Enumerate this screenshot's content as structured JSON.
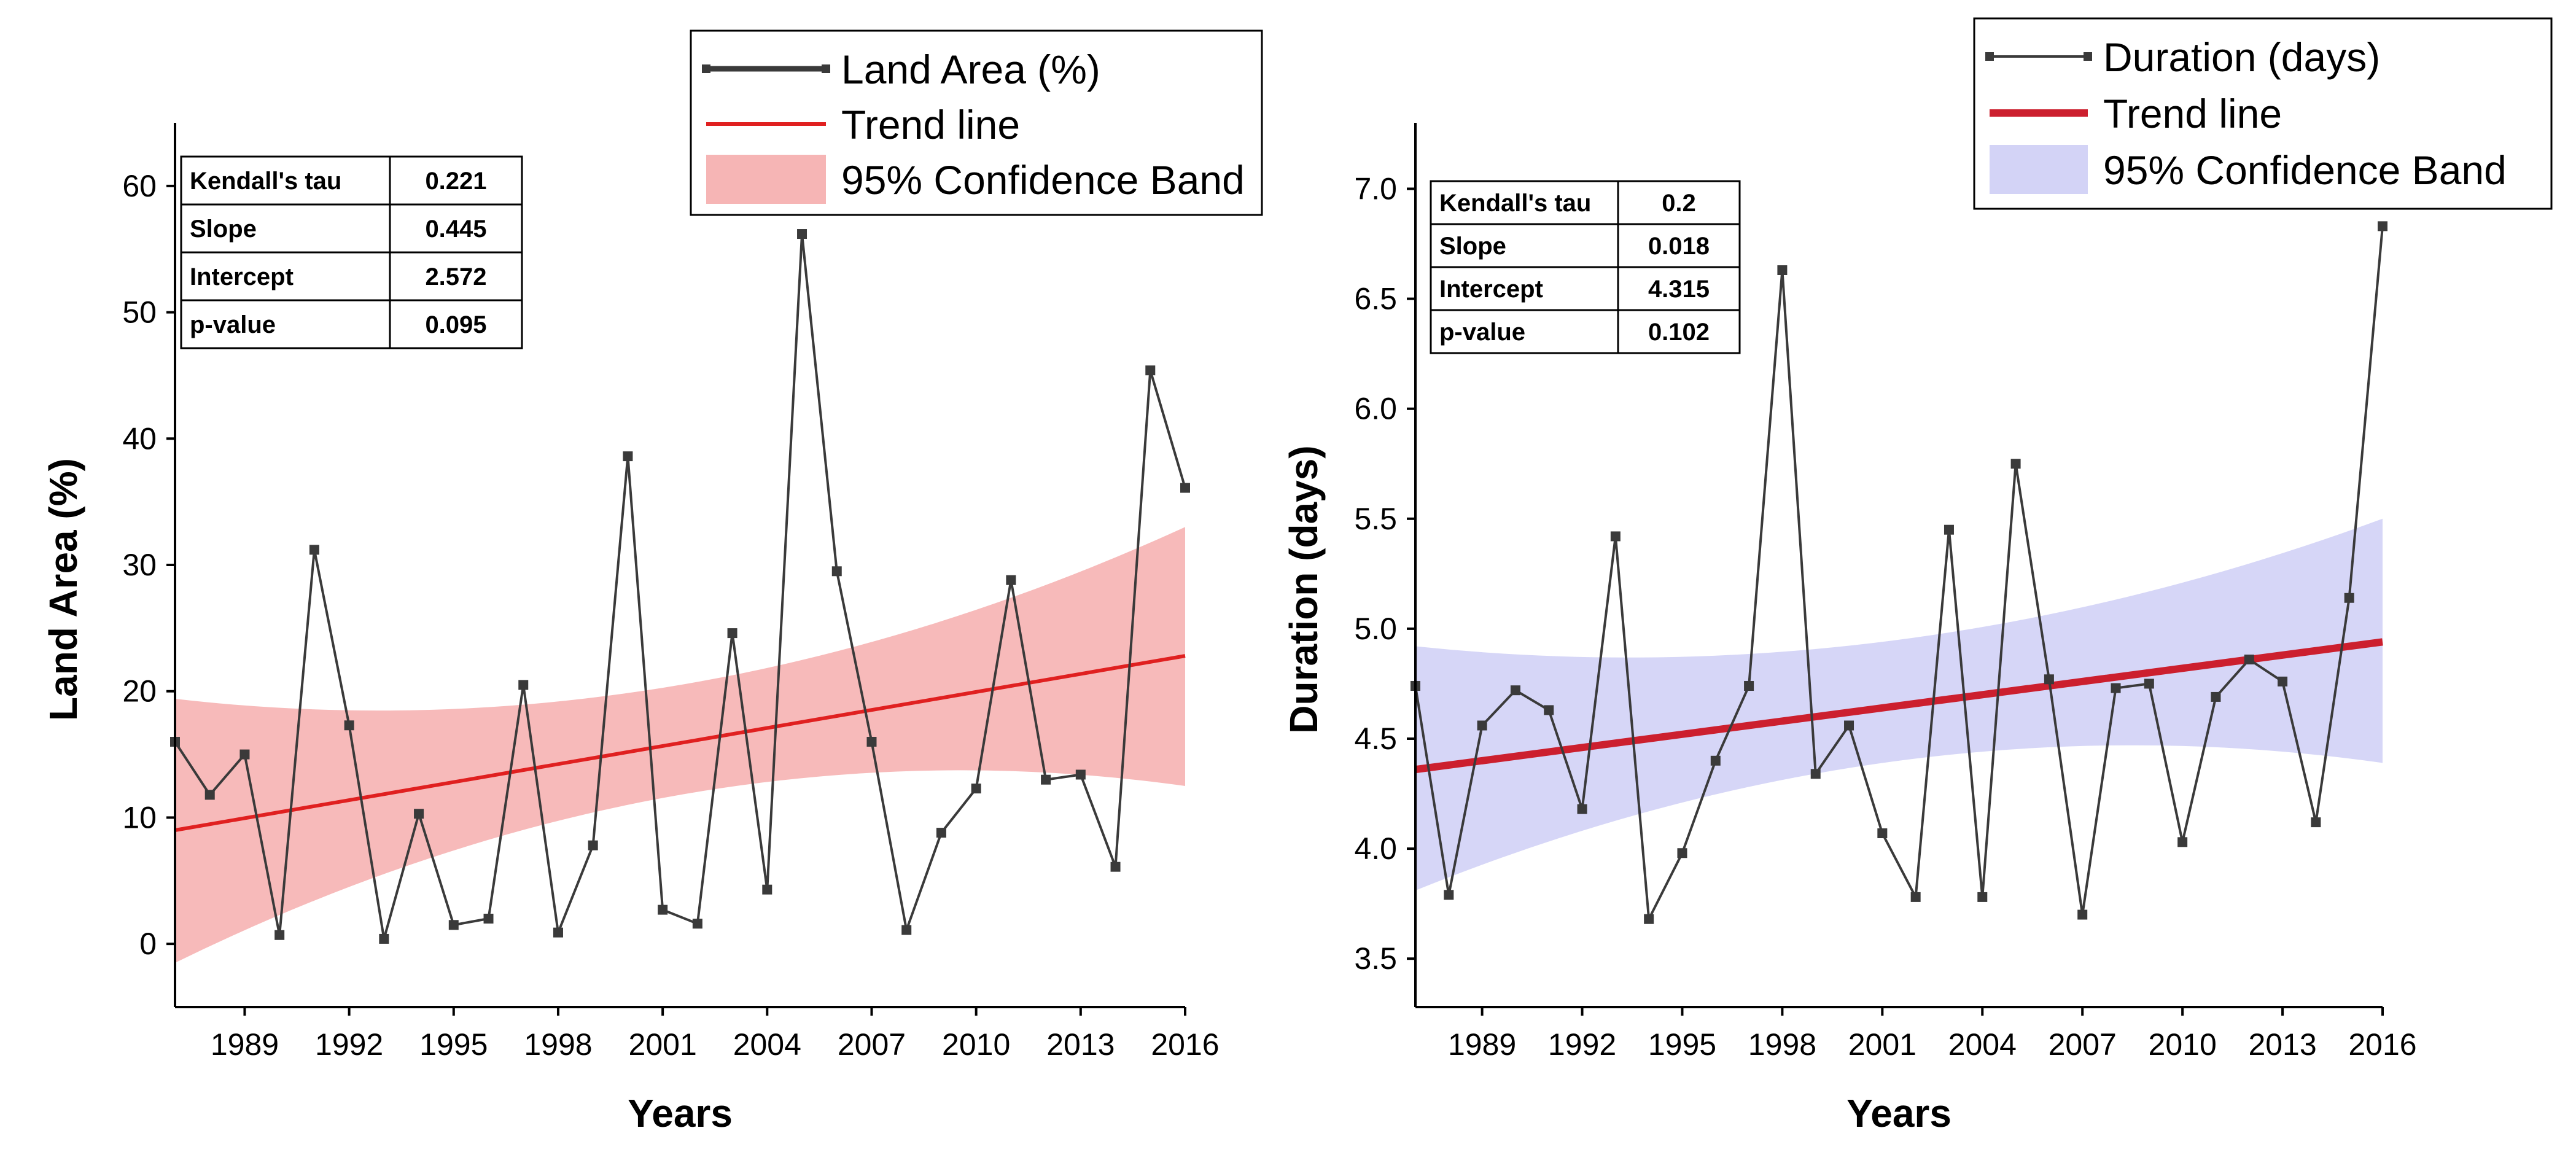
{
  "chart_data": [
    {
      "type": "line",
      "name": "land-area",
      "xlabel": "Years",
      "ylabel": "Land Area (%)",
      "xlim": [
        1987,
        2016
      ],
      "ylim": [
        -5,
        65
      ],
      "x_ticks": [
        1989,
        1992,
        1995,
        1998,
        2001,
        2004,
        2007,
        2010,
        2013,
        2016
      ],
      "y_ticks": [
        0,
        10,
        20,
        30,
        40,
        50,
        60
      ],
      "series": [
        {
          "name": "Land Area (%)",
          "x": [
            1987,
            1988,
            1989,
            1990,
            1991,
            1992,
            1993,
            1994,
            1995,
            1996,
            1997,
            1998,
            1999,
            2000,
            2001,
            2002,
            2003,
            2004,
            2005,
            2006,
            2007,
            2008,
            2009,
            2010,
            2011,
            2012,
            2013,
            2014,
            2015,
            2016
          ],
          "values": [
            16.0,
            11.8,
            15.0,
            0.7,
            31.2,
            17.3,
            0.4,
            10.3,
            1.5,
            2.0,
            20.5,
            0.9,
            7.8,
            38.6,
            2.7,
            1.6,
            24.6,
            4.3,
            56.2,
            29.5,
            16.0,
            1.1,
            8.8,
            12.3,
            28.8,
            13.0,
            13.4,
            6.1,
            45.4,
            36.1
          ],
          "color": "#3a3a3a"
        }
      ],
      "trend": {
        "name": "Trend line",
        "start": 9.0,
        "end": 22.8,
        "color": "#e02020"
      },
      "band": {
        "name": "95% Confidence Band",
        "lower_start": -1.5,
        "lower_mid": 11.8,
        "lower_end": 12.5,
        "upper_start": 19.4,
        "upper_mid": 20.5,
        "upper_end": 33.0,
        "color": "#f4a3a3"
      },
      "stats": [
        {
          "label": "Kendall's tau",
          "value": "0.221"
        },
        {
          "label": "Slope",
          "value": "0.445"
        },
        {
          "label": "Intercept",
          "value": "2.572"
        },
        {
          "label": "p-value",
          "value": "0.095"
        }
      ]
    },
    {
      "type": "line",
      "name": "duration",
      "xlabel": "Years",
      "ylabel": "Duration (days)",
      "xlim": [
        1987,
        2016
      ],
      "ylim": [
        3.28,
        7.3
      ],
      "x_ticks": [
        1989,
        1992,
        1995,
        1998,
        2001,
        2004,
        2007,
        2010,
        2013,
        2016
      ],
      "y_ticks": [
        3.5,
        4.0,
        4.5,
        5.0,
        5.5,
        6.0,
        6.5,
        7.0
      ],
      "y_tick_labels": [
        "3.5",
        "4.0",
        "4.5",
        "5.0",
        "5.5",
        "6.0",
        "6.5",
        "7.0"
      ],
      "series": [
        {
          "name": "Duration (days)",
          "x": [
            1987,
            1988,
            1989,
            1990,
            1991,
            1992,
            1993,
            1994,
            1995,
            1996,
            1997,
            1998,
            1999,
            2000,
            2001,
            2002,
            2003,
            2004,
            2005,
            2006,
            2007,
            2008,
            2009,
            2010,
            2011,
            2012,
            2013,
            2014,
            2015,
            2016
          ],
          "values": [
            4.74,
            3.79,
            4.56,
            4.72,
            4.63,
            4.18,
            5.42,
            3.68,
            3.98,
            4.4,
            4.74,
            6.63,
            4.34,
            4.56,
            4.07,
            3.78,
            5.45,
            3.78,
            5.75,
            4.77,
            3.7,
            4.73,
            4.75,
            4.03,
            4.69,
            4.86,
            4.76,
            4.12,
            5.14,
            6.83
          ],
          "color": "#3a3a3a"
        }
      ],
      "trend": {
        "name": "Trend line",
        "start": 4.36,
        "end": 4.94,
        "color": "#cc1f2e"
      },
      "band": {
        "name": "95% Confidence Band",
        "lower_start": 3.81,
        "lower_mid": 4.4,
        "lower_end": 4.39,
        "upper_start": 4.92,
        "upper_mid": 4.95,
        "upper_end": 5.5,
        "color": "#c8c8f4"
      },
      "stats": [
        {
          "label": "Kendall's tau",
          "value": "0.2"
        },
        {
          "label": "Slope",
          "value": "0.018"
        },
        {
          "label": "Intercept",
          "value": "4.315"
        },
        {
          "label": "p-value",
          "value": "0.102"
        }
      ]
    }
  ]
}
